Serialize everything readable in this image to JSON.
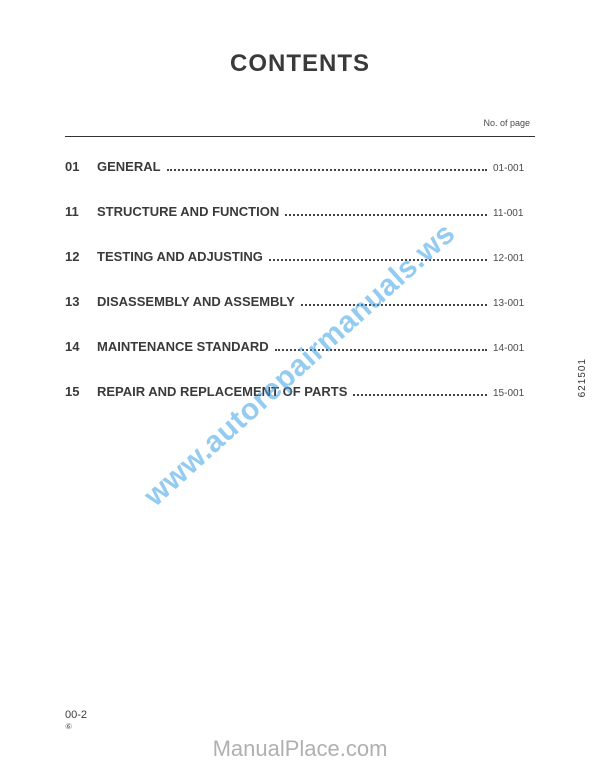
{
  "title": "CONTENTS",
  "page_header_label": "No. of page",
  "toc": [
    {
      "num": "01",
      "title": "GENERAL",
      "page": "01-001"
    },
    {
      "num": "11",
      "title": "STRUCTURE AND FUNCTION",
      "page": "11-001"
    },
    {
      "num": "12",
      "title": "TESTING AND ADJUSTING",
      "page": "12-001"
    },
    {
      "num": "13",
      "title": "DISASSEMBLY AND ASSEMBLY",
      "page": "13-001"
    },
    {
      "num": "14",
      "title": "MAINTENANCE STANDARD",
      "page": "14-001"
    },
    {
      "num": "15",
      "title": "REPAIR AND REPLACEMENT OF PARTS",
      "page": "15-001"
    }
  ],
  "side_code": "621501",
  "footer_main": "00-2",
  "footer_sub": "⑥",
  "watermark_site": "ManualPlace.com",
  "watermark_diag": "www.autorepairmanuals.ws",
  "colors": {
    "text": "#3a3a3a",
    "watermark_diag": "rgba(60,160,230,0.55)",
    "watermark_site": "#b0b0b0",
    "background": "#ffffff"
  },
  "typography": {
    "title_fontsize": 24,
    "toc_fontsize": 13,
    "page_label_fontsize": 9,
    "footer_fontsize": 11
  }
}
